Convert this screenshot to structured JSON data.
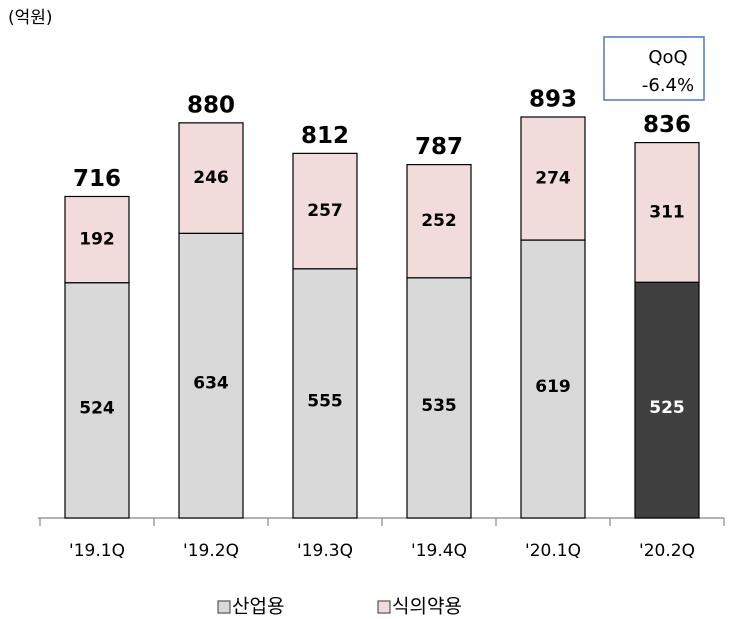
{
  "chart_data": {
    "type": "stacked_bar",
    "unit_label": "(억원)",
    "categories": [
      "'19.1Q",
      "'19.2Q",
      "'19.3Q",
      "'19.4Q",
      "'20.1Q",
      "'20.2Q"
    ],
    "series": [
      {
        "name": "산업용",
        "color": "#d9d9d9",
        "colors": [
          "#d9d9d9",
          "#d9d9d9",
          "#d9d9d9",
          "#d9d9d9",
          "#d9d9d9",
          "#404040"
        ],
        "values": [
          524,
          634,
          555,
          535,
          619,
          525
        ]
      },
      {
        "name": "식의약용",
        "color": "#f2dcdb",
        "values": [
          192,
          246,
          257,
          252,
          274,
          311
        ]
      }
    ],
    "totals": [
      716,
      880,
      812,
      787,
      893,
      836
    ],
    "annotation": [
      "QoQ",
      "-6.4%"
    ]
  }
}
